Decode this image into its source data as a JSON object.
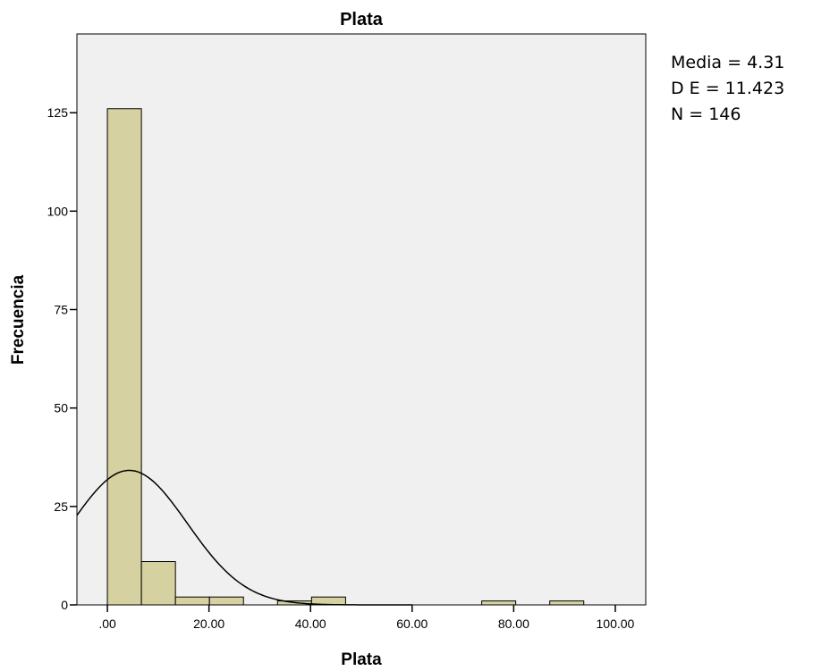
{
  "chart_data": {
    "type": "bar",
    "subtype": "histogram",
    "title": "Plata",
    "xlabel": "Plata",
    "ylabel": "Frecuencia",
    "xlim": [
      -6,
      106
    ],
    "ylim": [
      0,
      145
    ],
    "x_ticks": [
      0,
      20,
      40,
      60,
      80,
      100
    ],
    "x_tick_labels": [
      ".00",
      "20.00",
      "40.00",
      "60.00",
      "80.00",
      "100.00"
    ],
    "y_ticks": [
      0,
      25,
      50,
      75,
      100,
      125
    ],
    "y_tick_labels": [
      "0",
      "25",
      "50",
      "75",
      "100",
      "125"
    ],
    "bin_width": 6.7,
    "bins": [
      {
        "start": 0.0,
        "count": 126
      },
      {
        "start": 6.7,
        "count": 11
      },
      {
        "start": 13.4,
        "count": 2
      },
      {
        "start": 20.1,
        "count": 2
      },
      {
        "start": 33.5,
        "count": 1
      },
      {
        "start": 40.2,
        "count": 2
      },
      {
        "start": 73.7,
        "count": 1
      },
      {
        "start": 87.1,
        "count": 1
      }
    ],
    "normal_curve": {
      "mean": 4.31,
      "sd": 11.423,
      "n": 146
    },
    "bar_color": "#d6d1a0",
    "plot_background": "#f0f0f0",
    "grid": false,
    "legend": "none"
  },
  "stats": {
    "media": "Media = 4.31",
    "de": "D E = 11.423",
    "n": "N = 146"
  }
}
